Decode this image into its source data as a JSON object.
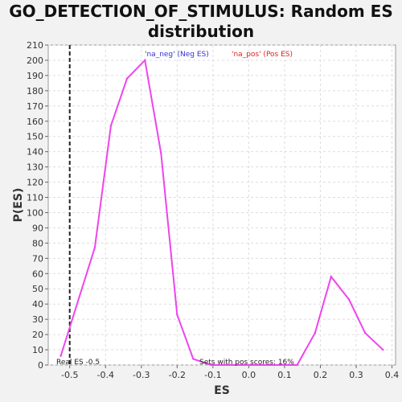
{
  "title_line1": "GO_DETECTION_OF_STIMULUS: Random ES",
  "title_line2": "distribution",
  "chart_data": {
    "type": "line",
    "xlabel": "ES",
    "ylabel": "P(ES)",
    "xlim": [
      -0.56,
      0.41
    ],
    "ylim": [
      0,
      210
    ],
    "xticks": [
      "-0.5",
      "-0.4",
      "-0.3",
      "-0.2",
      "-0.1",
      "0.0",
      "0.1",
      "0.2",
      "0.3",
      "0.4"
    ],
    "xtick_values": [
      -0.5,
      -0.4,
      -0.3,
      -0.2,
      -0.1,
      0.0,
      0.1,
      0.2,
      0.3,
      0.4
    ],
    "yticks": [
      0,
      10,
      20,
      30,
      40,
      50,
      60,
      70,
      80,
      90,
      100,
      110,
      120,
      130,
      140,
      150,
      160,
      170,
      180,
      190,
      200,
      210
    ],
    "grid": true,
    "series": [
      {
        "color": "#ee44ee",
        "x": [
          -0.525,
          -0.43,
          -0.385,
          -0.34,
          -0.29,
          -0.245,
          -0.2,
          -0.155,
          -0.105,
          0.135,
          0.185,
          0.23,
          0.28,
          0.325,
          0.375
        ],
        "y": [
          6,
          77,
          157,
          188,
          200,
          139,
          33,
          4,
          0,
          0,
          21,
          58,
          43,
          21,
          10
        ]
      }
    ],
    "legend": [
      {
        "label": "'na_neg' (Neg ES)",
        "color": "#3333cc"
      },
      {
        "label": "'na_pos' (Pos ES)",
        "color": "#dd2222"
      }
    ],
    "real_es": {
      "x": -0.5,
      "label": "Real ES -0.5"
    },
    "annotation": "Sets with pos scores: 16%"
  }
}
